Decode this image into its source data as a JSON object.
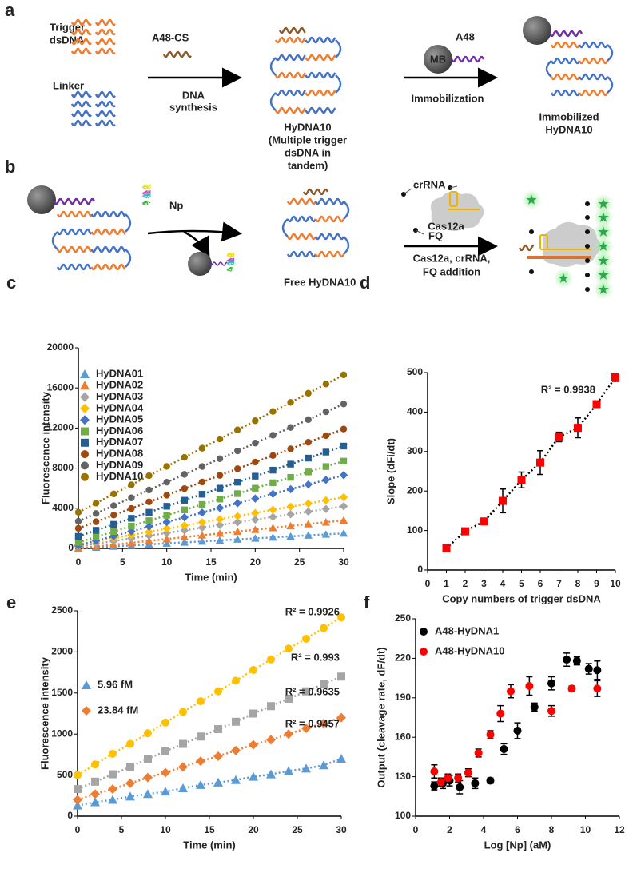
{
  "diagram": {
    "a": {
      "label": "a",
      "trigger": [
        "Trigger",
        "dsDNA"
      ],
      "linker": "Linker",
      "a48cs": "A48-CS",
      "synthesis": [
        "DNA",
        "synthesis"
      ],
      "hydna10": [
        "HyDNA10",
        "(Multiple trigger",
        "dsDNA in",
        "tandem)"
      ],
      "mb": "MB",
      "a48": "A48",
      "immobilization": "Immobilization",
      "immobilized": [
        "Immobilized",
        "HyDNA10"
      ]
    },
    "b": {
      "label": "b",
      "np": "Np",
      "free": "Free HyDNA10",
      "crrna": "crRNA",
      "cas12a": "Cas12a",
      "fq": "FQ",
      "addition": [
        "Cas12a, crRNA,",
        "FQ addition"
      ]
    }
  },
  "chart_data": [
    {
      "type": "line",
      "panel_label": "c",
      "x_label": "Time (min)",
      "y_label": "Fluorescence intensity",
      "xlim": [
        0,
        30
      ],
      "xticks": [
        0,
        5,
        10,
        15,
        20,
        25,
        30
      ],
      "ylim": [
        0,
        20000
      ],
      "yticks": [
        0,
        4000,
        8000,
        12000,
        16000,
        20000
      ],
      "x": [
        0,
        2,
        4,
        6,
        8,
        10,
        12,
        14,
        16,
        18,
        20,
        22,
        24,
        26,
        28,
        30
      ],
      "series": [
        {
          "name": "HyDNA01",
          "color": "#5b9bd5",
          "marker": "triangle",
          "values": [
            0,
            100,
            200,
            300,
            400,
            500,
            600,
            700,
            800,
            900,
            1000,
            1100,
            1200,
            1300,
            1400,
            1500
          ]
        },
        {
          "name": "HyDNA02",
          "color": "#ed7d31",
          "marker": "triangle",
          "values": [
            0,
            190,
            370,
            560,
            750,
            930,
            1120,
            1310,
            1490,
            1680,
            1870,
            2050,
            2240,
            2430,
            2610,
            2800
          ]
        },
        {
          "name": "HyDNA03",
          "color": "#a5a5a5",
          "marker": "diamond",
          "values": [
            200,
            470,
            730,
            1000,
            1270,
            1530,
            1800,
            2070,
            2330,
            2600,
            2870,
            3130,
            3400,
            3670,
            3930,
            4200
          ]
        },
        {
          "name": "HyDNA04",
          "color": "#ffc000",
          "marker": "diamond",
          "values": [
            400,
            710,
            1030,
            1340,
            1650,
            1970,
            2280,
            2590,
            2910,
            3220,
            3530,
            3850,
            4160,
            4470,
            4790,
            5100
          ]
        },
        {
          "name": "HyDNA05",
          "color": "#4472c4",
          "marker": "diamond",
          "values": [
            300,
            770,
            1230,
            1700,
            2170,
            2630,
            3100,
            3570,
            4030,
            4500,
            4970,
            5430,
            5900,
            6370,
            6830,
            7300
          ]
        },
        {
          "name": "HyDNA06",
          "color": "#70ad47",
          "marker": "square",
          "values": [
            600,
            1140,
            1680,
            2220,
            2760,
            3300,
            3840,
            4380,
            4920,
            5460,
            6000,
            6540,
            7080,
            7620,
            8160,
            8700
          ]
        },
        {
          "name": "HyDNA07",
          "color": "#255e91",
          "marker": "square",
          "values": [
            1200,
            1800,
            2400,
            3000,
            3600,
            4200,
            4800,
            5400,
            6000,
            6600,
            7200,
            7800,
            8400,
            9000,
            9600,
            10200
          ]
        },
        {
          "name": "HyDNA08",
          "color": "#9e480e",
          "marker": "circle",
          "values": [
            2000,
            2660,
            3320,
            3980,
            4640,
            5300,
            5960,
            6620,
            7280,
            7940,
            8600,
            9260,
            9920,
            10580,
            11240,
            11900
          ]
        },
        {
          "name": "HyDNA09",
          "color": "#636363",
          "marker": "circle",
          "values": [
            2700,
            3480,
            4260,
            5040,
            5820,
            6600,
            7380,
            8160,
            8940,
            9720,
            10500,
            11280,
            12060,
            12840,
            13620,
            14400
          ]
        },
        {
          "name": "HyDNA10",
          "color": "#997300",
          "marker": "circle",
          "values": [
            3600,
            4510,
            5430,
            6340,
            7250,
            8170,
            9080,
            9990,
            10910,
            11820,
            12730,
            13650,
            14560,
            15470,
            16390,
            17300
          ]
        }
      ]
    },
    {
      "type": "line",
      "panel_label": "d",
      "x_label": "Copy numbers of trigger dsDNA",
      "y_label": "Slope (dFi/dt)",
      "xlim": [
        0,
        10
      ],
      "xticks": [
        0,
        1,
        2,
        3,
        4,
        5,
        6,
        7,
        8,
        9,
        10
      ],
      "ylim": [
        0,
        500
      ],
      "yticks": [
        0,
        100,
        200,
        300,
        400,
        500
      ],
      "x": [
        1,
        2,
        3,
        4,
        5,
        6,
        7,
        8,
        9,
        10
      ],
      "series": [
        {
          "color": "#ff0000",
          "marker": "square",
          "values": [
            55,
            98,
            123,
            175,
            228,
            272,
            337,
            360,
            420,
            488
          ],
          "errors": [
            8,
            5,
            8,
            30,
            20,
            30,
            12,
            25,
            5,
            10
          ]
        }
      ],
      "annotations": [
        {
          "text": "R² = 0.9938"
        }
      ]
    },
    {
      "type": "line",
      "panel_label": "e",
      "x_label": "Time (min)",
      "y_label": "Fluorescence intensity",
      "xlim": [
        0,
        30
      ],
      "xticks": [
        0,
        5,
        10,
        15,
        20,
        25,
        30
      ],
      "ylim": [
        0,
        2500
      ],
      "yticks": [
        0,
        500,
        1000,
        1500,
        2000,
        2500
      ],
      "x": [
        0,
        2,
        4,
        6,
        8,
        10,
        12,
        14,
        16,
        18,
        20,
        22,
        24,
        26,
        28,
        30
      ],
      "series": [
        {
          "name": "5.96 fM",
          "color": "#5b9bd5",
          "marker": "triangle",
          "values": [
            130,
            170,
            200,
            240,
            270,
            300,
            340,
            380,
            410,
            440,
            480,
            510,
            550,
            580,
            620,
            700
          ]
        },
        {
          "name": "23.84 fM",
          "color": "#ed7d31",
          "marker": "diamond",
          "values": [
            200,
            270,
            330,
            400,
            470,
            530,
            600,
            670,
            730,
            800,
            870,
            930,
            1000,
            1070,
            1130,
            1200
          ]
        },
        {
          "color": "#a5a5a5",
          "marker": "square",
          "values": [
            330,
            420,
            510,
            600,
            700,
            790,
            880,
            970,
            1060,
            1150,
            1250,
            1340,
            1430,
            1520,
            1610,
            1700
          ]
        },
        {
          "color": "#ffc000",
          "marker": "circle",
          "values": [
            500,
            630,
            760,
            880,
            1010,
            1140,
            1270,
            1400,
            1520,
            1650,
            1780,
            1910,
            2040,
            2160,
            2290,
            2420
          ]
        }
      ],
      "annotations": [
        {
          "text": "R² = 0.9926"
        },
        {
          "text": "R² = 0.993"
        },
        {
          "text": "R² = 0.9635"
        },
        {
          "text": "R² = 0.9457"
        }
      ]
    },
    {
      "type": "scatter",
      "panel_label": "f",
      "x_label": "Log [Np] (aM)",
      "y_label": "Output (cleavage rate, dF/dt)",
      "xlim": [
        0,
        12
      ],
      "xticks": [
        0,
        2,
        4,
        6,
        8,
        10,
        12
      ],
      "ylim": [
        100,
        250
      ],
      "yticks": [
        100,
        130,
        160,
        190,
        220,
        250
      ],
      "series": [
        {
          "name": "A48-HyDNA1",
          "color": "#000000",
          "marker": "circle",
          "x": [
            1.1,
            1.6,
            2,
            2.6,
            3.5,
            4.4,
            5.2,
            6,
            7,
            8,
            8.9,
            9.5,
            10.2,
            10.7
          ],
          "values": [
            123,
            125,
            127,
            122,
            125,
            127,
            151,
            165,
            183,
            201,
            219,
            218,
            212,
            211
          ],
          "errors": [
            3,
            4,
            4,
            5,
            4,
            2,
            4,
            6,
            3,
            5,
            5,
            3,
            4,
            7
          ]
        },
        {
          "name": "A48-HyDNA10",
          "color": "#ff0000",
          "marker": "circle",
          "x": [
            1.1,
            1.5,
            1.9,
            2.5,
            3.1,
            3.7,
            4.4,
            5,
            5.6,
            6.7,
            8,
            9.2,
            10.7
          ],
          "values": [
            134,
            126,
            129,
            129,
            133,
            148,
            162,
            178,
            195,
            199,
            180,
            197,
            197
          ],
          "errors": [
            5,
            3,
            3,
            3,
            3,
            3,
            3,
            6,
            5,
            7,
            4,
            2,
            6
          ]
        }
      ]
    }
  ]
}
